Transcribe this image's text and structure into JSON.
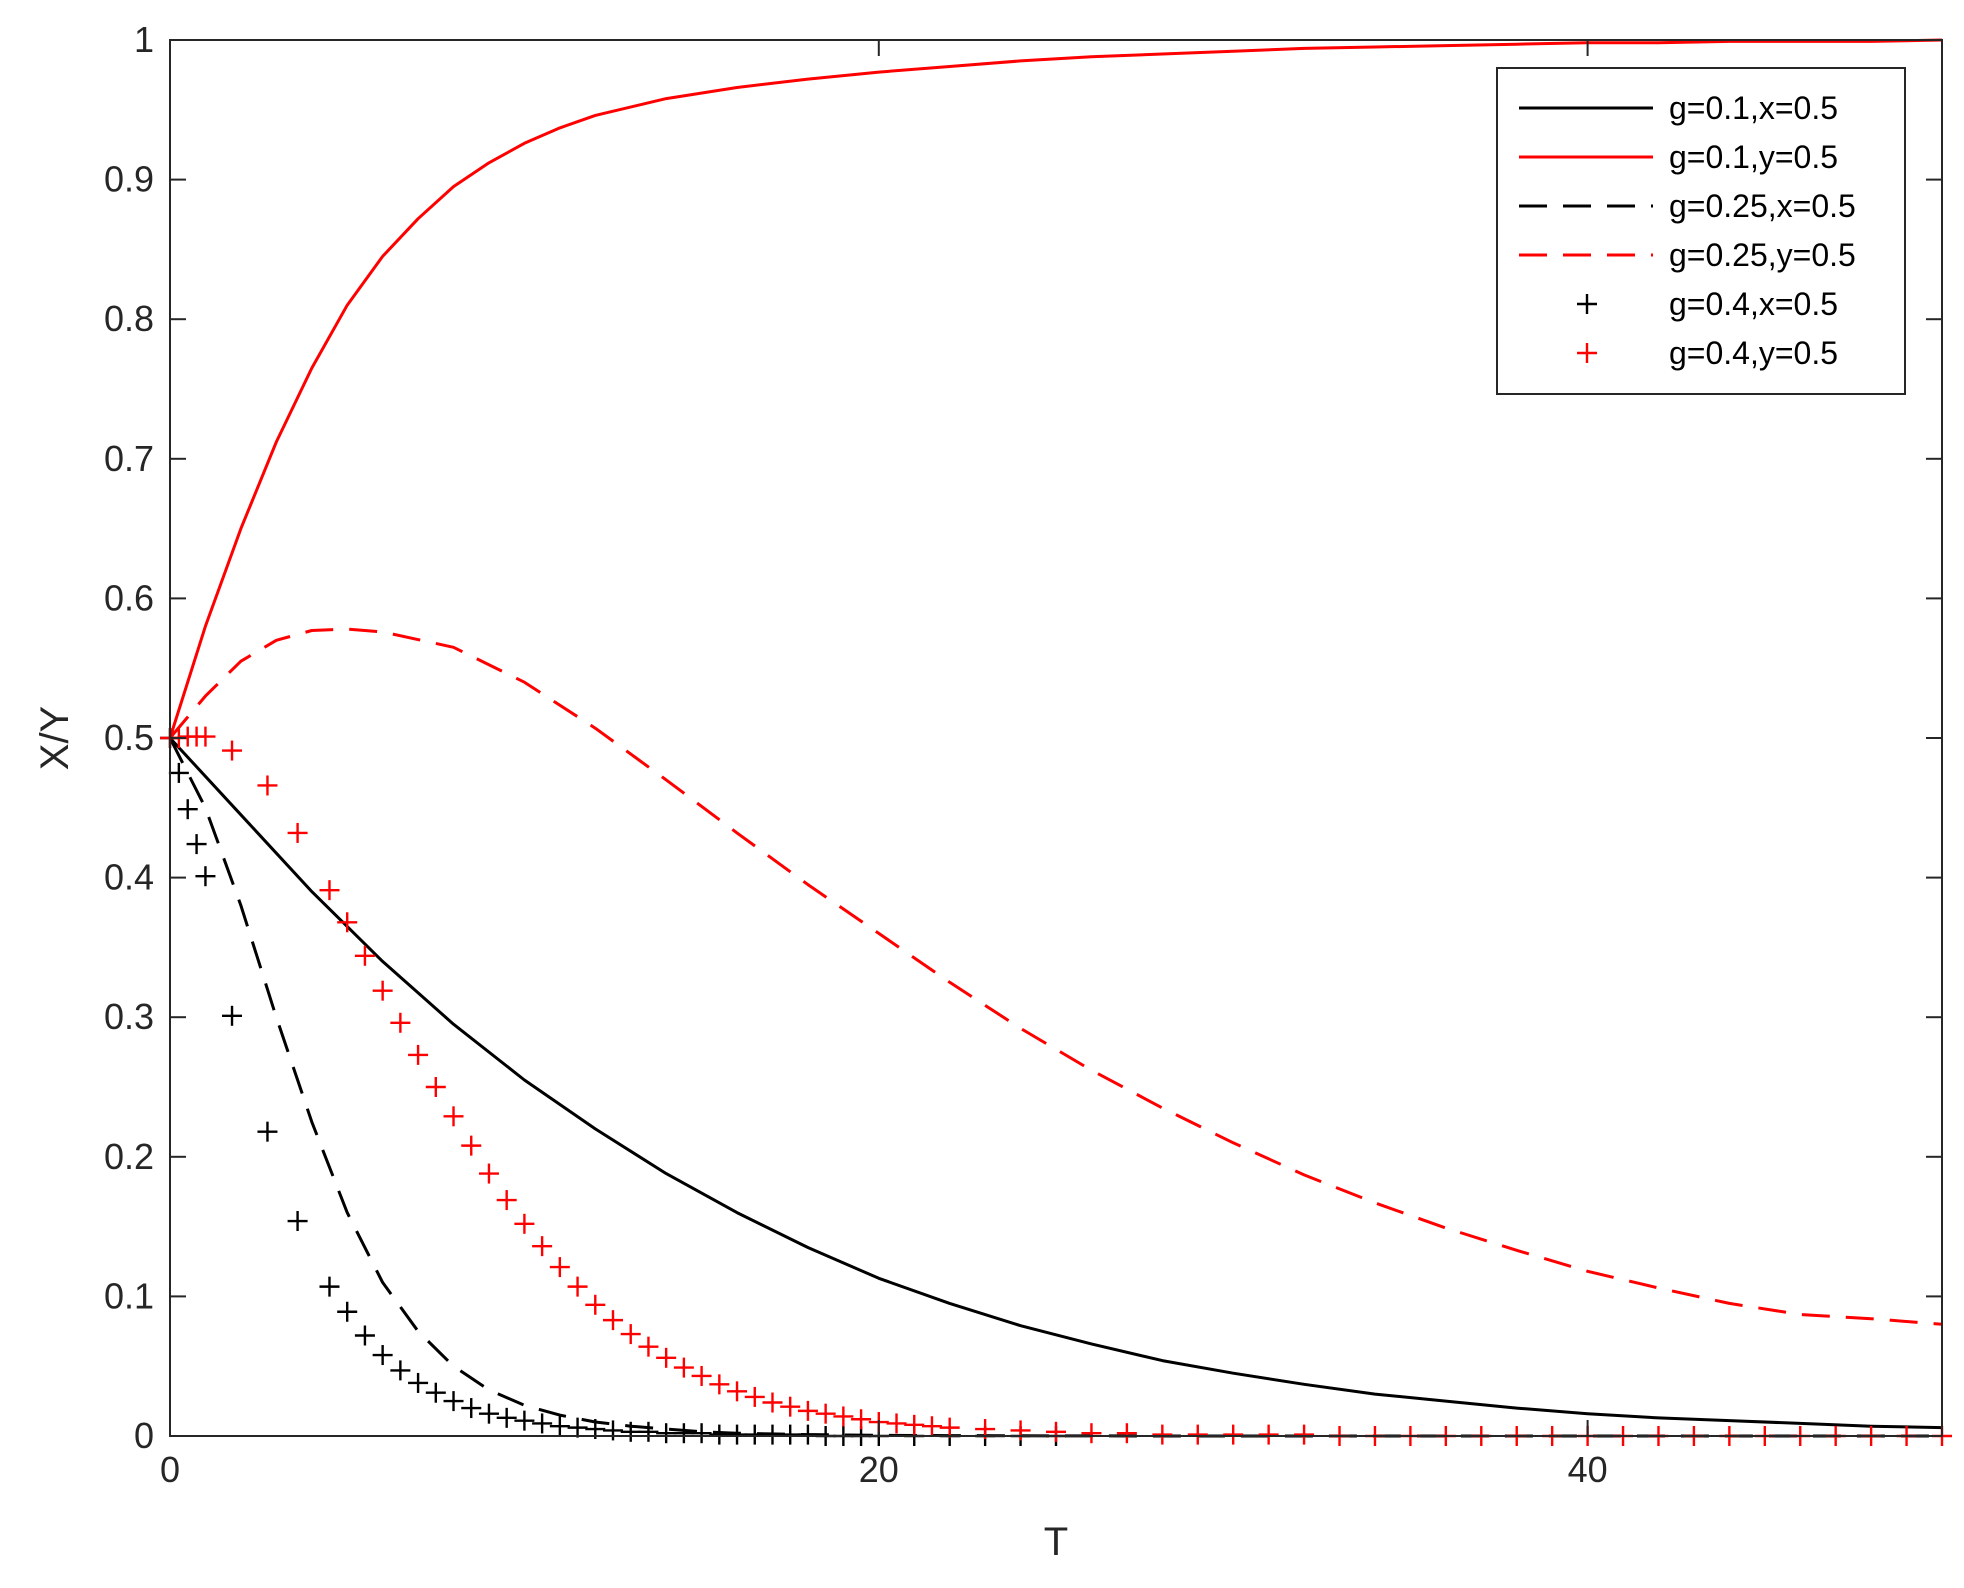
{
  "chart_data": {
    "type": "line",
    "title": "",
    "xlabel": "T",
    "ylabel": "X/Y",
    "xlim": [
      0,
      50
    ],
    "ylim": [
      0,
      1
    ],
    "xticks": [
      0,
      20,
      40
    ],
    "yticks": [
      0,
      0.1,
      0.2,
      0.3,
      0.4,
      0.5,
      0.6,
      0.7,
      0.8,
      0.9,
      1
    ],
    "grid": false,
    "legend_position": "top-right",
    "colors": {
      "black": "#000000",
      "red": "#ff0000"
    },
    "series": [
      {
        "name": "g=0.1,x=0.5",
        "color": "#000000",
        "style": "solid",
        "x": [
          0,
          2,
          4,
          6,
          8,
          10,
          12,
          14,
          16,
          18,
          20,
          22,
          24,
          26,
          28,
          30,
          32,
          34,
          36,
          38,
          40,
          42,
          44,
          46,
          48,
          50
        ],
        "y": [
          0.5,
          0.445,
          0.39,
          0.34,
          0.295,
          0.255,
          0.22,
          0.188,
          0.16,
          0.135,
          0.113,
          0.095,
          0.079,
          0.066,
          0.054,
          0.045,
          0.037,
          0.03,
          0.025,
          0.02,
          0.016,
          0.013,
          0.011,
          0.009,
          0.007,
          0.006
        ]
      },
      {
        "name": "g=0.1,y=0.5",
        "color": "#ff0000",
        "style": "solid",
        "x": [
          0,
          1,
          2,
          3,
          4,
          5,
          6,
          7,
          8,
          9,
          10,
          11,
          12,
          14,
          16,
          18,
          20,
          22,
          24,
          26,
          28,
          30,
          32,
          34,
          36,
          38,
          40,
          42,
          44,
          46,
          48,
          50
        ],
        "y": [
          0.5,
          0.58,
          0.65,
          0.712,
          0.765,
          0.81,
          0.845,
          0.872,
          0.895,
          0.912,
          0.926,
          0.937,
          0.946,
          0.958,
          0.966,
          0.972,
          0.977,
          0.981,
          0.985,
          0.988,
          0.99,
          0.992,
          0.994,
          0.995,
          0.996,
          0.997,
          0.998,
          0.998,
          0.999,
          0.999,
          0.999,
          1.0
        ]
      },
      {
        "name": "g=0.25,x=0.5",
        "color": "#000000",
        "style": "dashed",
        "x": [
          0,
          1,
          2,
          3,
          4,
          5,
          6,
          7,
          8,
          9,
          10,
          11,
          12,
          13,
          14,
          15,
          16,
          18,
          20,
          22,
          25,
          30,
          35,
          40,
          45,
          50
        ],
        "y": [
          0.5,
          0.45,
          0.38,
          0.3,
          0.225,
          0.16,
          0.11,
          0.075,
          0.05,
          0.033,
          0.022,
          0.015,
          0.01,
          0.007,
          0.005,
          0.003,
          0.002,
          0.001,
          0.0005,
          0.0003,
          0.0001,
          0,
          0,
          0,
          0,
          0
        ]
      },
      {
        "name": "g=0.25,y=0.5",
        "color": "#ff0000",
        "style": "dashed",
        "x": [
          0,
          1,
          2,
          3,
          4,
          5,
          6,
          8,
          10,
          12,
          14,
          16,
          18,
          20,
          22,
          24,
          26,
          28,
          30,
          32,
          34,
          36,
          38,
          40,
          42,
          44,
          46,
          48,
          50
        ],
        "y": [
          0.5,
          0.53,
          0.555,
          0.57,
          0.577,
          0.578,
          0.576,
          0.565,
          0.54,
          0.507,
          0.47,
          0.432,
          0.395,
          0.36,
          0.325,
          0.292,
          0.262,
          0.235,
          0.21,
          0.187,
          0.167,
          0.149,
          0.133,
          0.118,
          0.106,
          0.095,
          0.087,
          0.084,
          0.08
        ]
      },
      {
        "name": "g=0.4,x=0.5",
        "color": "#000000",
        "style": "plus",
        "x": [
          0,
          0.25,
          0.5,
          0.75,
          1,
          1.75,
          2.75,
          3.6,
          4.5,
          5,
          5.5,
          6,
          6.5,
          7,
          7.5,
          8,
          8.5,
          9,
          9.5,
          10,
          10.5,
          11,
          11.5,
          12,
          12.5,
          13,
          13.5,
          14,
          14.5,
          15,
          15.5,
          16,
          16.5,
          17,
          17.5,
          18,
          18.5,
          19,
          19.5,
          20,
          21,
          22,
          23,
          24,
          25
        ],
        "y": [
          0.5,
          0.475,
          0.449,
          0.424,
          0.401,
          0.301,
          0.218,
          0.154,
          0.107,
          0.089,
          0.072,
          0.058,
          0.047,
          0.038,
          0.031,
          0.025,
          0.02,
          0.016,
          0.013,
          0.011,
          0.009,
          0.007,
          0.006,
          0.005,
          0.004,
          0.003,
          0.003,
          0.002,
          0.002,
          0.002,
          0.001,
          0.001,
          0.001,
          0.001,
          0.001,
          0.001,
          0,
          0,
          0,
          0,
          0,
          0,
          0,
          0,
          0
        ]
      },
      {
        "name": "g=0.4,y=0.5",
        "color": "#ff0000",
        "style": "plus",
        "x": [
          0,
          0.25,
          0.5,
          0.75,
          1,
          1.75,
          2.75,
          3.6,
          4.5,
          5,
          5.5,
          6,
          6.5,
          7,
          7.5,
          8,
          8.5,
          9,
          9.5,
          10,
          10.5,
          11,
          11.5,
          12,
          12.5,
          13,
          13.5,
          14,
          14.5,
          15,
          15.5,
          16,
          16.5,
          17,
          17.5,
          18,
          18.5,
          19,
          19.5,
          20,
          20.5,
          21,
          21.5,
          22,
          23,
          24,
          25,
          26,
          27,
          28,
          29,
          30,
          31,
          32,
          33,
          34,
          35,
          36,
          37,
          38,
          39,
          40,
          41,
          42,
          43,
          44,
          45,
          46,
          47,
          48,
          49,
          50
        ],
        "y": [
          0.5,
          0.5,
          0.501,
          0.501,
          0.501,
          0.491,
          0.466,
          0.432,
          0.391,
          0.368,
          0.344,
          0.319,
          0.296,
          0.273,
          0.25,
          0.229,
          0.208,
          0.188,
          0.169,
          0.152,
          0.136,
          0.121,
          0.107,
          0.094,
          0.083,
          0.073,
          0.064,
          0.056,
          0.049,
          0.043,
          0.037,
          0.032,
          0.028,
          0.024,
          0.021,
          0.018,
          0.016,
          0.014,
          0.012,
          0.01,
          0.009,
          0.008,
          0.007,
          0.006,
          0.005,
          0.004,
          0.003,
          0.002,
          0.002,
          0.001,
          0.001,
          0.001,
          0.001,
          0.001,
          0,
          0,
          0,
          0,
          0,
          0,
          0,
          0,
          0,
          0,
          0,
          0,
          0,
          0,
          0,
          0,
          0,
          0
        ]
      }
    ]
  }
}
